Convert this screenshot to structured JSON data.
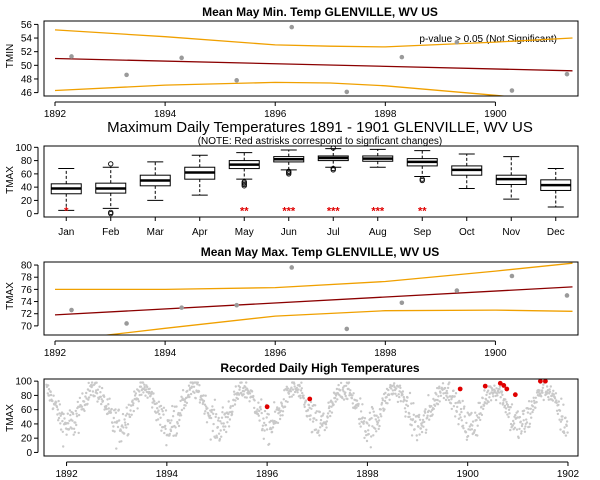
{
  "chart_data": [
    {
      "id": "panel1",
      "type": "scatter",
      "title": "Mean May Min. Temp GLENVILLE, WV US",
      "ylabel": "TMIN",
      "annotation": "p-value > 0.05 (Not Significant)",
      "xlim": [
        1891.8,
        1901.5
      ],
      "ylim": [
        45.5,
        56.5
      ],
      "xticks": [
        1892,
        1894,
        1896,
        1898,
        1900
      ],
      "yticks": [
        46,
        48,
        50,
        52,
        54,
        56
      ],
      "points": [
        {
          "x": 1892.3,
          "y": 51.3
        },
        {
          "x": 1893.3,
          "y": 48.6
        },
        {
          "x": 1894.3,
          "y": 51.1
        },
        {
          "x": 1895.3,
          "y": 47.8
        },
        {
          "x": 1896.3,
          "y": 55.6
        },
        {
          "x": 1897.3,
          "y": 46.1
        },
        {
          "x": 1898.3,
          "y": 51.2
        },
        {
          "x": 1899.3,
          "y": 53.4
        },
        {
          "x": 1900.3,
          "y": 46.3
        },
        {
          "x": 1901.3,
          "y": 48.7
        }
      ],
      "trend": [
        [
          1892.0,
          51.0
        ],
        [
          1901.4,
          49.2
        ]
      ],
      "upper_band": [
        [
          1892.0,
          55.2
        ],
        [
          1894.0,
          54.2
        ],
        [
          1896.0,
          53.0
        ],
        [
          1897.0,
          52.8
        ],
        [
          1898.0,
          52.7
        ],
        [
          1900.0,
          53.4
        ],
        [
          1901.4,
          54.0
        ]
      ],
      "lower_band": [
        [
          1892.0,
          46.3
        ],
        [
          1894.0,
          47.1
        ],
        [
          1896.0,
          47.5
        ],
        [
          1897.0,
          47.4
        ],
        [
          1898.0,
          47.0
        ],
        [
          1900.0,
          45.6
        ],
        [
          1901.4,
          44.5
        ]
      ]
    },
    {
      "id": "panel2",
      "type": "box",
      "title": "Maximum Daily Temperatures 1891 - 1901 GLENVILLE, WV US",
      "subtitle": "(NOTE: Red astrisks correspond to signficant changes)",
      "ylabel": "TMAX",
      "ylim": [
        -5,
        102
      ],
      "yticks": [
        0,
        20,
        40,
        60,
        80,
        100
      ],
      "categories": [
        "Jan",
        "Feb",
        "Mar",
        "Apr",
        "May",
        "Jun",
        "Jul",
        "Aug",
        "Sep",
        "Oct",
        "Nov",
        "Dec"
      ],
      "boxes": [
        {
          "min": 5,
          "q1": 30,
          "median": 38,
          "q3": 45,
          "max": 68,
          "outliers": []
        },
        {
          "min": 8,
          "q1": 31,
          "median": 38,
          "q3": 46,
          "max": 70,
          "outliers": [
            0,
            2,
            75
          ]
        },
        {
          "min": 20,
          "q1": 42,
          "median": 50,
          "q3": 58,
          "max": 78,
          "outliers": []
        },
        {
          "min": 28,
          "q1": 52,
          "median": 62,
          "q3": 70,
          "max": 88,
          "outliers": []
        },
        {
          "min": 52,
          "q1": 68,
          "median": 74,
          "q3": 80,
          "max": 92,
          "outliers": [
            42,
            44,
            46,
            48
          ]
        },
        {
          "min": 66,
          "q1": 78,
          "median": 82,
          "q3": 86,
          "max": 96,
          "outliers": [
            60,
            62,
            64
          ]
        },
        {
          "min": 70,
          "q1": 80,
          "median": 84,
          "q3": 87,
          "max": 98,
          "outliers": [
            66,
            68,
            99
          ]
        },
        {
          "min": 70,
          "q1": 79,
          "median": 83,
          "q3": 87,
          "max": 97,
          "outliers": []
        },
        {
          "min": 56,
          "q1": 72,
          "median": 78,
          "q3": 83,
          "max": 95,
          "outliers": [
            50,
            52
          ]
        },
        {
          "min": 38,
          "q1": 58,
          "median": 66,
          "q3": 72,
          "max": 90,
          "outliers": []
        },
        {
          "min": 22,
          "q1": 44,
          "median": 52,
          "q3": 58,
          "max": 86,
          "outliers": []
        },
        {
          "min": 10,
          "q1": 35,
          "median": 43,
          "q3": 51,
          "max": 68,
          "outliers": []
        }
      ],
      "significance": [
        "*",
        "",
        "",
        "",
        "**",
        "***",
        "***",
        "***",
        "**",
        "",
        "",
        ""
      ]
    },
    {
      "id": "panel3",
      "type": "scatter",
      "title": "Mean May Max. Temp GLENVILLE, WV US",
      "ylabel": "TMAX",
      "xlim": [
        1891.8,
        1901.5
      ],
      "ylim": [
        68.5,
        80.5
      ],
      "xticks": [
        1892,
        1894,
        1896,
        1898,
        1900
      ],
      "yticks": [
        70,
        72,
        74,
        76,
        78,
        80
      ],
      "points": [
        {
          "x": 1892.3,
          "y": 72.6
        },
        {
          "x": 1893.3,
          "y": 70.4
        },
        {
          "x": 1894.3,
          "y": 73.0
        },
        {
          "x": 1895.3,
          "y": 73.4
        },
        {
          "x": 1896.3,
          "y": 79.6
        },
        {
          "x": 1897.3,
          "y": 69.5
        },
        {
          "x": 1898.3,
          "y": 73.8
        },
        {
          "x": 1899.3,
          "y": 75.8
        },
        {
          "x": 1900.3,
          "y": 78.2
        },
        {
          "x": 1901.3,
          "y": 75.0
        }
      ],
      "trend": [
        [
          1892.0,
          71.8
        ],
        [
          1901.4,
          76.4
        ]
      ],
      "upper_band": [
        [
          1892.0,
          76.0
        ],
        [
          1894.0,
          76.0
        ],
        [
          1896.0,
          76.3
        ],
        [
          1898.0,
          77.3
        ],
        [
          1900.0,
          79.0
        ],
        [
          1901.4,
          80.3
        ]
      ],
      "lower_band": [
        [
          1892.0,
          67.5
        ],
        [
          1894.0,
          69.6
        ],
        [
          1896.0,
          71.6
        ],
        [
          1898.0,
          72.5
        ],
        [
          1900.0,
          72.6
        ],
        [
          1901.4,
          72.4
        ]
      ]
    },
    {
      "id": "panel4",
      "type": "scatter",
      "title": "Recorded Daily High Temperatures",
      "ylabel": "TMAX",
      "xlim": [
        1891.55,
        1902.2
      ],
      "ylim": [
        -5,
        103
      ],
      "xticks": [
        1892,
        1894,
        1896,
        1898,
        1900,
        1902
      ],
      "yticks": [
        0,
        20,
        40,
        60,
        80,
        100
      ],
      "series_params": {
        "start": 1891.6,
        "end": 1902.0,
        "mean": 63,
        "amplitude": 26,
        "peak_phase": 0.54,
        "noise": 11
      },
      "highlights": [
        {
          "x": 1896.0,
          "y": 64
        },
        {
          "x": 1896.85,
          "y": 75
        },
        {
          "x": 1899.85,
          "y": 89
        },
        {
          "x": 1900.35,
          "y": 93
        },
        {
          "x": 1900.65,
          "y": 97
        },
        {
          "x": 1900.72,
          "y": 94
        },
        {
          "x": 1900.78,
          "y": 89
        },
        {
          "x": 1900.95,
          "y": 81
        },
        {
          "x": 1901.45,
          "y": 100
        },
        {
          "x": 1901.55,
          "y": 100
        }
      ]
    }
  ]
}
